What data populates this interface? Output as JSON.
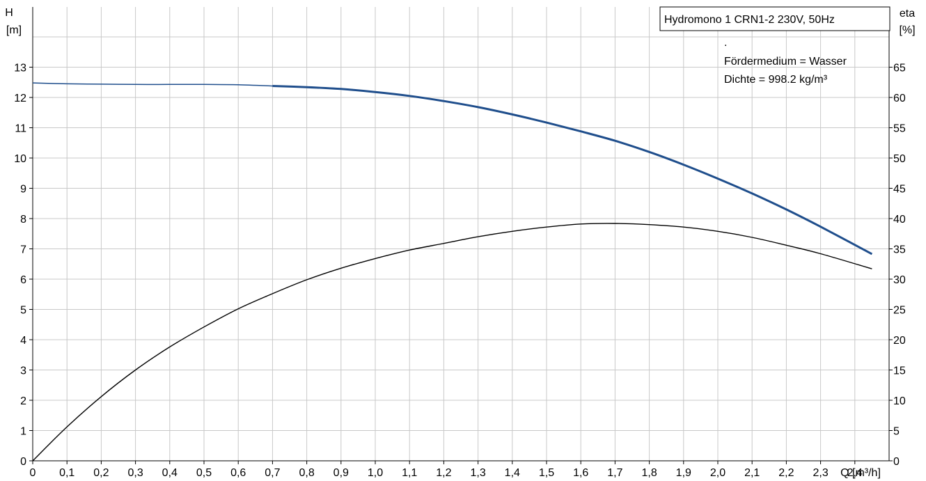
{
  "chart_data": {
    "type": "line",
    "title": "Hydromono 1 CRN1-2 230V, 50Hz",
    "notes": [
      ".",
      "Fördermedium = Wasser",
      "Dichte = 998.2 kg/m³"
    ],
    "xlabel": "Q [m³/h]",
    "ylabel_left_name": "H",
    "ylabel_left_unit": "[m]",
    "ylabel_right_name": "eta",
    "ylabel_right_unit": "[%]",
    "xlim": [
      0,
      2.5
    ],
    "ylim_left": [
      0,
      14
    ],
    "ylim_right": [
      0,
      70
    ],
    "x_ticks": [
      "0",
      "0,1",
      "0,2",
      "0,3",
      "0,4",
      "0,5",
      "0,6",
      "0,7",
      "0,8",
      "0,9",
      "1,0",
      "1,1",
      "1,2",
      "1,3",
      "1,4",
      "1,5",
      "1,6",
      "1,7",
      "1,8",
      "1,9",
      "2,0",
      "2,1",
      "2,2",
      "2,3",
      "2,4"
    ],
    "y_left_ticks": [
      "0",
      "1",
      "2",
      "3",
      "4",
      "5",
      "6",
      "7",
      "8",
      "9",
      "10",
      "11",
      "12",
      "13"
    ],
    "y_right_ticks": [
      "0",
      "5",
      "10",
      "15",
      "20",
      "25",
      "30",
      "35",
      "40",
      "45",
      "50",
      "55",
      "60",
      "65"
    ],
    "grid": true,
    "series": [
      {
        "axis": "left",
        "color": "#1f4e8c",
        "x": [
          0,
          0.1,
          0.2,
          0.3,
          0.4,
          0.5,
          0.6,
          0.7,
          0.8,
          0.9,
          1.0,
          1.1,
          1.2,
          1.3,
          1.4,
          1.5,
          1.6,
          1.7,
          1.8,
          1.9,
          2.0,
          2.1,
          2.2,
          2.3,
          2.45
        ],
        "values": [
          12.48,
          12.45,
          12.44,
          12.43,
          12.43,
          12.43,
          12.42,
          12.38,
          12.34,
          12.28,
          12.18,
          12.05,
          11.88,
          11.68,
          11.44,
          11.17,
          10.88,
          10.57,
          10.2,
          9.78,
          9.32,
          8.83,
          8.3,
          7.73,
          6.83
        ]
      },
      {
        "axis": "right",
        "color": "#000000",
        "x": [
          0,
          0.1,
          0.2,
          0.3,
          0.4,
          0.5,
          0.6,
          0.7,
          0.8,
          0.9,
          1.0,
          1.1,
          1.2,
          1.3,
          1.4,
          1.5,
          1.6,
          1.7,
          1.8,
          1.9,
          2.0,
          2.1,
          2.2,
          2.3,
          2.45
        ],
        "values": [
          0,
          5.6,
          10.6,
          15.0,
          18.8,
          22.1,
          25.1,
          27.6,
          29.9,
          31.8,
          33.4,
          34.8,
          35.9,
          37.0,
          37.9,
          38.6,
          39.1,
          39.2,
          39.0,
          38.6,
          37.9,
          36.9,
          35.6,
          34.2,
          31.7
        ]
      }
    ]
  }
}
